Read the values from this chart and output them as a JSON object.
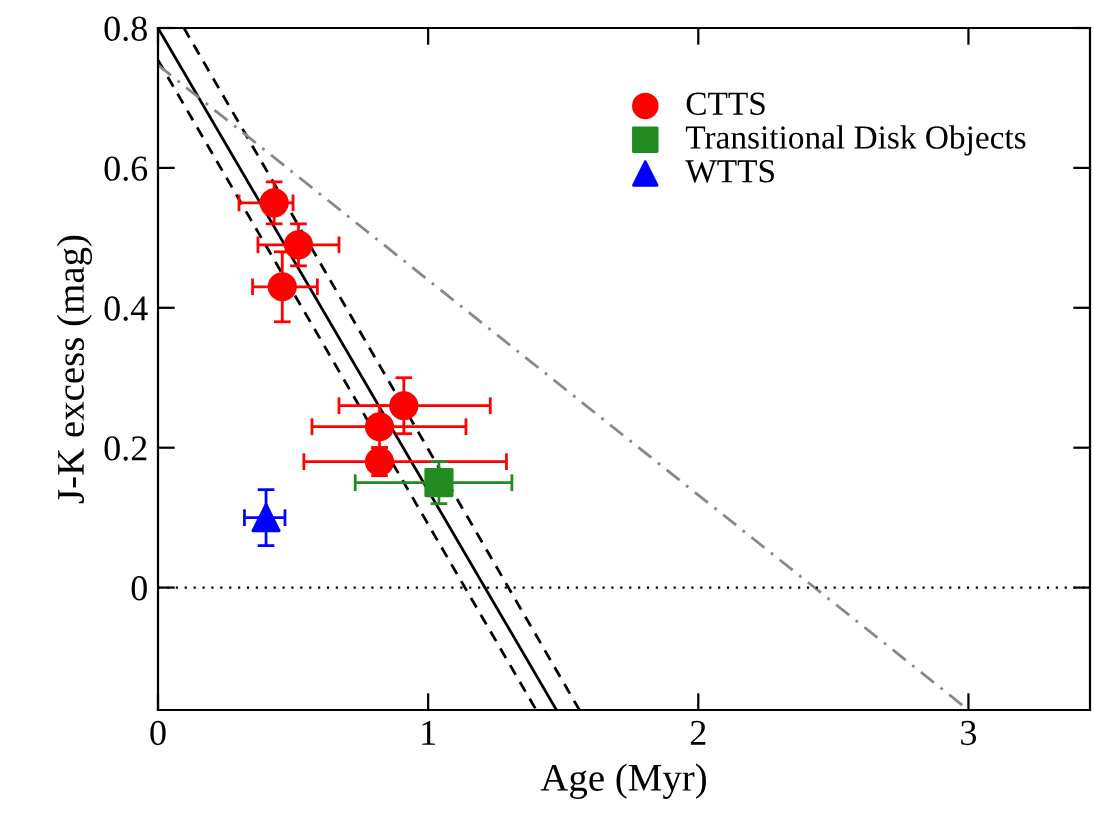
{
  "chart_data": {
    "type": "scatter",
    "xlabel": "Age (Myr)",
    "ylabel": "J-K excess (mag)",
    "xlim": [
      0,
      3.45
    ],
    "ylim": [
      -0.175,
      0.8
    ],
    "xticks": [
      0,
      1,
      2,
      3
    ],
    "yticks": [
      0,
      0.2,
      0.4,
      0.6,
      0.8
    ],
    "grid": false,
    "legend": "top right",
    "ref_lines": [
      {
        "axis": "y",
        "value": 0,
        "color": "#000000",
        "line_style": "dotted"
      }
    ],
    "series": [
      {
        "type": "line",
        "color": "#000000",
        "line_style": "solid",
        "marker": "none",
        "x": [
          0,
          1.475
        ],
        "values": [
          0.8,
          -0.175
        ]
      },
      {
        "type": "line",
        "color": "#000000",
        "line_style": "dashed",
        "marker": "none",
        "x": [
          0,
          1.4
        ],
        "values": [
          0.754,
          -0.175
        ]
      },
      {
        "type": "line",
        "color": "#000000",
        "line_style": "dashed",
        "marker": "none",
        "x": [
          0.096,
          1.56
        ],
        "values": [
          0.8,
          -0.175
        ]
      },
      {
        "type": "line",
        "color": "#888888",
        "line_style": "dashdot",
        "marker": "none",
        "x": [
          0,
          3.0
        ],
        "values": [
          0.747,
          -0.175
        ]
      },
      {
        "name": "CTTS",
        "color": "#ff0000",
        "marker": "circle",
        "x": [
          0.43,
          0.52,
          0.46,
          0.91,
          0.82,
          0.82
        ],
        "values": [
          0.55,
          0.49,
          0.43,
          0.26,
          0.23,
          0.18
        ],
        "errors": [
          0.03,
          0.03,
          0.05,
          0.04,
          0.03,
          0.02
        ],
        "xerrors": [
          [
            0.3,
            0.5
          ],
          [
            0.37,
            0.67
          ],
          [
            0.35,
            0.59
          ],
          [
            0.67,
            1.23
          ],
          [
            0.57,
            1.14
          ],
          [
            0.54,
            1.29
          ]
        ]
      },
      {
        "name": "Transitional Disk Objects",
        "color": "#228b22",
        "marker": "square",
        "x": [
          1.04
        ],
        "values": [
          0.15
        ],
        "errors": [
          0.03
        ],
        "xerrors": [
          [
            0.73,
            1.31
          ]
        ]
      },
      {
        "name": "WTTS",
        "color": "#0000ff",
        "marker": "triangle",
        "x": [
          0.4
        ],
        "values": [
          0.1
        ],
        "errors": [
          0.04
        ],
        "xerrors": [
          [
            0.32,
            0.47
          ]
        ]
      }
    ]
  }
}
